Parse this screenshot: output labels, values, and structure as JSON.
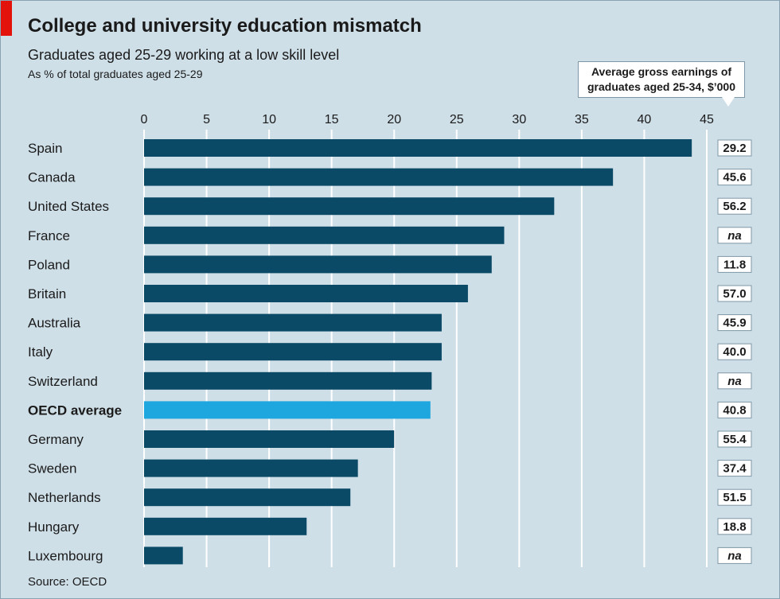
{
  "header": {
    "title": "College and university education mismatch",
    "subtitle": "Graduates aged 25-29 working at a low skill level",
    "unit_note": "As % of total graduates aged 25-29"
  },
  "earnings_callout": {
    "line1": "Average gross earnings of",
    "line2": "graduates aged 25-34, $’000"
  },
  "colors": {
    "background": "#cfdfe8",
    "bar": "#0b4a66",
    "highlight_bar": "#1ea6df",
    "gridline": "#ffffff",
    "brand_red": "#e3120b"
  },
  "source": "Source: OECD",
  "chart_data": {
    "type": "bar",
    "orientation": "horizontal",
    "xlim": [
      0,
      45
    ],
    "x_ticks": [
      "0",
      "5",
      "10",
      "15",
      "20",
      "25",
      "30",
      "35",
      "40",
      "45"
    ],
    "grid": true,
    "categories": [
      "Spain",
      "Canada",
      "United States",
      "France",
      "Poland",
      "Britain",
      "Australia",
      "Italy",
      "Switzerland",
      "OECD average",
      "Germany",
      "Sweden",
      "Netherlands",
      "Hungary",
      "Luxembourg"
    ],
    "values": [
      43.8,
      37.5,
      32.8,
      28.8,
      27.8,
      25.9,
      23.8,
      23.8,
      23.0,
      22.9,
      20.0,
      17.1,
      16.5,
      13.0,
      3.1
    ],
    "highlight": "OECD average",
    "earnings": [
      "29.2",
      "45.6",
      "56.2",
      "na",
      "11.8",
      "57.0",
      "45.9",
      "40.0",
      "na",
      "40.8",
      "55.4",
      "37.4",
      "51.5",
      "18.8",
      "na"
    ]
  }
}
